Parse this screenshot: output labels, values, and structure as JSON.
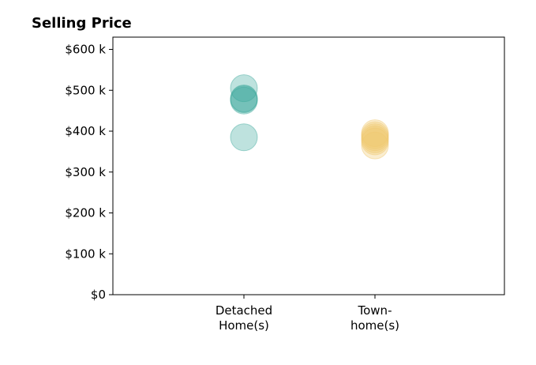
{
  "chart_data": {
    "type": "scatter",
    "title": "Selling Price",
    "xlabel": "",
    "ylabel": "",
    "categories": [
      [
        "Detached",
        "Home(s)"
      ],
      [
        "Town-",
        "home(s)"
      ]
    ],
    "ylim": [
      0,
      630000
    ],
    "y_ticks": [
      {
        "value": 0,
        "label": "$0"
      },
      {
        "value": 100000,
        "label": "$100 k"
      },
      {
        "value": 200000,
        "label": "$200 k"
      },
      {
        "value": 300000,
        "label": "$300 k"
      },
      {
        "value": 400000,
        "label": "$400 k"
      },
      {
        "value": 500000,
        "label": "$500 k"
      },
      {
        "value": 600000,
        "label": "$600 k"
      }
    ],
    "series": [
      {
        "category": 0,
        "color": "#3aa69a",
        "values": [
          505000,
          480000,
          478000,
          475000,
          385000
        ]
      },
      {
        "category": 1,
        "color": "#f0c86e",
        "values": [
          395000,
          390000,
          385000,
          380000,
          375000,
          365000
        ]
      }
    ],
    "grid": false,
    "legend": "none"
  }
}
